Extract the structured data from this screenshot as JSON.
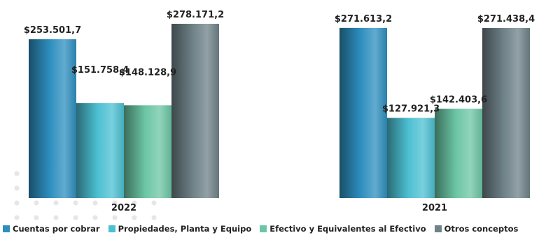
{
  "chart_data": {
    "type": "bar",
    "categories": [
      "2022",
      "2021"
    ],
    "series": [
      {
        "name": "Cuentas por cobrar",
        "values": [
          253501.7,
          271613.2
        ],
        "labels": [
          "$253.501,7",
          "$271.613,2"
        ],
        "color": "#2e8fbf"
      },
      {
        "name": "Propiedades, Planta y Equipo",
        "values": [
          151758.4,
          127921.3
        ],
        "labels": [
          "$151.758,4",
          "$127.921,3"
        ],
        "color": "#4cc0d2"
      },
      {
        "name": "Efectivo y Equivalentes al Efectivo",
        "values": [
          148128.9,
          142403.6
        ],
        "labels": [
          "$148.128,9",
          "$142.403,6"
        ],
        "color": "#6cc6a6"
      },
      {
        "name": "Otros conceptos",
        "values": [
          278171.2,
          271438.4
        ],
        "labels": [
          "$278.171,2",
          "$271.438,4"
        ],
        "color": "#6e8288"
      }
    ],
    "xlabel": "",
    "ylabel": "",
    "legend": "bottom",
    "grid": false
  }
}
